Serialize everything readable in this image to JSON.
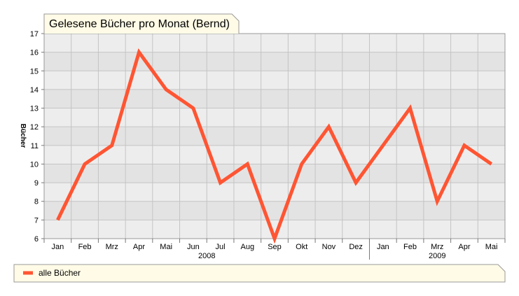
{
  "colors": {
    "series": "#ff5533",
    "band_dark": "#e3e3e3",
    "band_light": "#ededed",
    "grid": "#c4c4c4",
    "title_bg": "#fffbe6",
    "legend_bg": "#fffbe6",
    "border": "#999999"
  },
  "chart_data": {
    "type": "line",
    "title": "Gelesene Bücher pro Monat (Bernd)",
    "ylabel": "Bücher",
    "xlabel": "",
    "ylim": [
      6,
      17
    ],
    "yticks": [
      "6",
      "7",
      "8",
      "9",
      "10",
      "11",
      "12",
      "13",
      "14",
      "15",
      "16",
      "17"
    ],
    "categories": [
      "Jan",
      "Feb",
      "Mrz",
      "Apr",
      "Mai",
      "Jun",
      "Jul",
      "Aug",
      "Sep",
      "Okt",
      "Nov",
      "Dez",
      "Jan",
      "Feb",
      "Mrz",
      "Apr",
      "Mai"
    ],
    "year_groups": [
      {
        "label": "2008",
        "count": 12
      },
      {
        "label": "2009",
        "count": 5
      }
    ],
    "series": [
      {
        "name": "alle Bücher",
        "values": [
          7,
          10,
          11,
          16,
          14,
          13,
          9,
          10,
          6,
          10,
          12,
          9,
          11,
          13,
          8,
          11,
          10
        ]
      }
    ],
    "grid": true,
    "legend_position": "bottom-left"
  }
}
